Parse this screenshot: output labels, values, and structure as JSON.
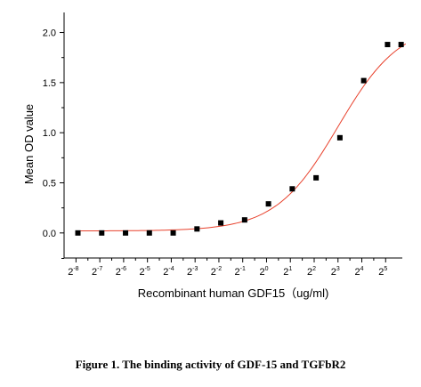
{
  "caption": "Figure 1. The binding activity of GDF-15 and TGFbR2",
  "colors": {
    "fit_line": "#e8412c",
    "marker": "#000000",
    "axis": "#000000"
  },
  "chart_data": {
    "type": "scatter",
    "xlabel": "Recombinant human  GDF15（ug/ml)",
    "ylabel": "Mean OD value",
    "x_scale": "log2",
    "xlim_exponent": [
      -8.5,
      5.7
    ],
    "x_ticks": [
      {
        "base": "2",
        "exp": "-8"
      },
      {
        "base": "2",
        "exp": "-7"
      },
      {
        "base": "2",
        "exp": "-6"
      },
      {
        "base": "2",
        "exp": "-5"
      },
      {
        "base": "2",
        "exp": "-4"
      },
      {
        "base": "2",
        "exp": "-3"
      },
      {
        "base": "2",
        "exp": "-2"
      },
      {
        "base": "2",
        "exp": "-1"
      },
      {
        "base": "2",
        "exp": "0"
      },
      {
        "base": "2",
        "exp": "1"
      },
      {
        "base": "2",
        "exp": "2"
      },
      {
        "base": "2",
        "exp": "3"
      },
      {
        "base": "2",
        "exp": "4"
      },
      {
        "base": "2",
        "exp": "5"
      }
    ],
    "ylim": [
      -0.25,
      2.2
    ],
    "y_ticks": [
      "0.0",
      "0.5",
      "1.0",
      "1.5",
      "2.0"
    ],
    "series": [
      {
        "type": "scatter",
        "marker": "square",
        "points": [
          {
            "x_exp": -8,
            "y": 0.0
          },
          {
            "x_exp": -7,
            "y": 0.0
          },
          {
            "x_exp": -6,
            "y": 0.0
          },
          {
            "x_exp": -5,
            "y": 0.0
          },
          {
            "x_exp": -4,
            "y": 0.0
          },
          {
            "x_exp": -3,
            "y": 0.04
          },
          {
            "x_exp": -2,
            "y": 0.1
          },
          {
            "x_exp": -1,
            "y": 0.13
          },
          {
            "x_exp": 0,
            "y": 0.29
          },
          {
            "x_exp": 1,
            "y": 0.44
          },
          {
            "x_exp": 2,
            "y": 0.55
          },
          {
            "x_exp": 3,
            "y": 0.95
          },
          {
            "x_exp": 4,
            "y": 1.52
          },
          {
            "x_exp": 5,
            "y": 1.88
          },
          {
            "x_exp": 6,
            "y": 1.88
          }
        ]
      },
      {
        "type": "line",
        "fit": "four-parameter logistic",
        "bottom": 0.02,
        "top": 2.1,
        "midpoint_exp": 3.0,
        "hill_slope": 0.55
      }
    ]
  }
}
